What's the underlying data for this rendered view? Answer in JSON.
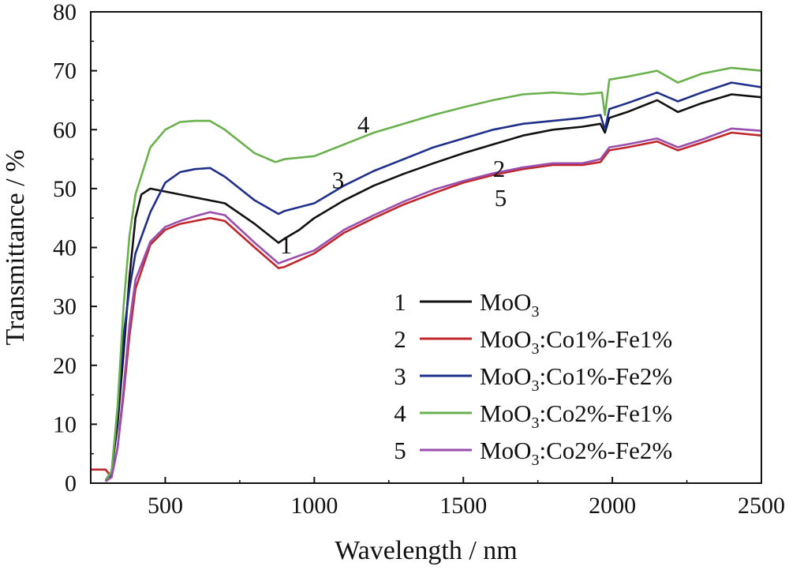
{
  "chart_data": {
    "type": "line",
    "title": "",
    "xlabel": "Wavelength / nm",
    "ylabel": "Transmittance / %",
    "xlim": [
      250,
      2500
    ],
    "ylim": [
      0,
      80
    ],
    "x_ticks": [
      500,
      1000,
      1500,
      2000,
      2500
    ],
    "y_ticks": [
      0,
      10,
      20,
      30,
      40,
      50,
      60,
      70,
      80
    ],
    "grid": false,
    "legend_position": "bottom-right",
    "series": [
      {
        "id": "1",
        "name": "MoO3",
        "legend_base": "MoO",
        "legend_sub": "3",
        "legend_suffix": "",
        "color": "#111111",
        "curve_label": {
          "text": "1",
          "x": 905,
          "y": 40.5
        },
        "points": [
          [
            300,
            0.5
          ],
          [
            320,
            2
          ],
          [
            340,
            10
          ],
          [
            360,
            22
          ],
          [
            380,
            35
          ],
          [
            400,
            45
          ],
          [
            420,
            49
          ],
          [
            450,
            50
          ],
          [
            500,
            49.5
          ],
          [
            600,
            48.5
          ],
          [
            700,
            47.5
          ],
          [
            800,
            44
          ],
          [
            880,
            40.8
          ],
          [
            900,
            41.5
          ],
          [
            950,
            43
          ],
          [
            1000,
            45
          ],
          [
            1100,
            48
          ],
          [
            1200,
            50.5
          ],
          [
            1300,
            52.5
          ],
          [
            1400,
            54.3
          ],
          [
            1500,
            56
          ],
          [
            1600,
            57.5
          ],
          [
            1700,
            59
          ],
          [
            1800,
            60
          ],
          [
            1900,
            60.5
          ],
          [
            1960,
            61
          ],
          [
            1975,
            59.5
          ],
          [
            1990,
            62
          ],
          [
            2050,
            63
          ],
          [
            2150,
            65
          ],
          [
            2220,
            63
          ],
          [
            2300,
            64.5
          ],
          [
            2400,
            66
          ],
          [
            2500,
            65.5
          ]
        ]
      },
      {
        "id": "2",
        "name": "MoO3:Co1%-Fe1%",
        "legend_base": "MoO",
        "legend_sub": "3",
        "legend_suffix": ":Co1%-Fe1%",
        "color": "#c0272d",
        "curve_label": {
          "text": "2",
          "x": 1620,
          "y": 53.5
        },
        "points": [
          [
            250,
            2.3
          ],
          [
            300,
            2.3
          ],
          [
            320,
            1
          ],
          [
            340,
            6
          ],
          [
            360,
            15
          ],
          [
            380,
            25
          ],
          [
            400,
            33
          ],
          [
            450,
            40.5
          ],
          [
            500,
            43
          ],
          [
            550,
            44
          ],
          [
            600,
            44.5
          ],
          [
            650,
            45
          ],
          [
            700,
            44.5
          ],
          [
            800,
            40
          ],
          [
            880,
            36.5
          ],
          [
            900,
            36.7
          ],
          [
            1000,
            39
          ],
          [
            1100,
            42.5
          ],
          [
            1200,
            45
          ],
          [
            1300,
            47.3
          ],
          [
            1400,
            49.2
          ],
          [
            1500,
            51
          ],
          [
            1600,
            52.3
          ],
          [
            1700,
            53.3
          ],
          [
            1800,
            54
          ],
          [
            1900,
            54
          ],
          [
            1960,
            54.5
          ],
          [
            1990,
            56.5
          ],
          [
            2050,
            57
          ],
          [
            2150,
            58
          ],
          [
            2220,
            56.5
          ],
          [
            2300,
            57.8
          ],
          [
            2400,
            59.5
          ],
          [
            2500,
            59
          ]
        ]
      },
      {
        "id": "3",
        "name": "MoO3:Co1%-Fe2%",
        "legend_base": "MoO",
        "legend_sub": "3",
        "legend_suffix": ":Co1%-Fe2%",
        "color": "#1f2f8a",
        "curve_label": {
          "text": "3",
          "x": 1080,
          "y": 51.5
        },
        "points": [
          [
            300,
            0.3
          ],
          [
            320,
            1.5
          ],
          [
            340,
            12
          ],
          [
            360,
            25
          ],
          [
            380,
            33
          ],
          [
            400,
            39
          ],
          [
            450,
            46
          ],
          [
            500,
            51
          ],
          [
            550,
            52.8
          ],
          [
            600,
            53.3
          ],
          [
            650,
            53.5
          ],
          [
            700,
            52
          ],
          [
            800,
            48
          ],
          [
            880,
            45.7
          ],
          [
            900,
            46.2
          ],
          [
            1000,
            47.5
          ],
          [
            1100,
            50.5
          ],
          [
            1200,
            53
          ],
          [
            1300,
            55
          ],
          [
            1400,
            57
          ],
          [
            1500,
            58.5
          ],
          [
            1600,
            60
          ],
          [
            1700,
            61
          ],
          [
            1800,
            61.5
          ],
          [
            1900,
            62
          ],
          [
            1960,
            62.5
          ],
          [
            1975,
            60
          ],
          [
            1990,
            63.5
          ],
          [
            2050,
            64.5
          ],
          [
            2150,
            66.3
          ],
          [
            2220,
            64.8
          ],
          [
            2300,
            66.3
          ],
          [
            2400,
            68
          ],
          [
            2500,
            67.2
          ]
        ]
      },
      {
        "id": "4",
        "name": "MoO3:Co2%-Fe1%",
        "legend_base": "MoO",
        "legend_sub": "3",
        "legend_suffix": ":Co2%-Fe1%",
        "color": "#6ab04c",
        "curve_label": {
          "text": "4",
          "x": 1165,
          "y": 61
        },
        "points": [
          [
            300,
            0.4
          ],
          [
            320,
            2
          ],
          [
            340,
            13
          ],
          [
            360,
            30
          ],
          [
            380,
            42
          ],
          [
            400,
            49
          ],
          [
            450,
            57
          ],
          [
            500,
            60
          ],
          [
            550,
            61.3
          ],
          [
            600,
            61.5
          ],
          [
            650,
            61.5
          ],
          [
            700,
            60
          ],
          [
            800,
            56
          ],
          [
            870,
            54.5
          ],
          [
            900,
            55
          ],
          [
            1000,
            55.5
          ],
          [
            1100,
            57.5
          ],
          [
            1200,
            59.5
          ],
          [
            1300,
            61
          ],
          [
            1400,
            62.5
          ],
          [
            1500,
            63.8
          ],
          [
            1600,
            65
          ],
          [
            1700,
            66
          ],
          [
            1800,
            66.3
          ],
          [
            1900,
            66
          ],
          [
            1965,
            66.3
          ],
          [
            1975,
            62.5
          ],
          [
            1990,
            68.5
          ],
          [
            2050,
            69
          ],
          [
            2150,
            70
          ],
          [
            2220,
            68
          ],
          [
            2300,
            69.5
          ],
          [
            2400,
            70.5
          ],
          [
            2500,
            70
          ]
        ]
      },
      {
        "id": "5",
        "name": "MoO3:Co2%-Fe2%",
        "legend_base": "MoO",
        "legend_sub": "3",
        "legend_suffix": ":Co2%-Fe2%",
        "color": "#9a4fae",
        "curve_label": {
          "text": "5",
          "x": 1625,
          "y": 48.5
        },
        "points": [
          [
            300,
            0.3
          ],
          [
            320,
            1
          ],
          [
            340,
            6
          ],
          [
            360,
            16
          ],
          [
            380,
            27
          ],
          [
            400,
            34.5
          ],
          [
            450,
            41
          ],
          [
            500,
            43.5
          ],
          [
            550,
            44.5
          ],
          [
            600,
            45.3
          ],
          [
            650,
            46
          ],
          [
            700,
            45.5
          ],
          [
            800,
            40.8
          ],
          [
            880,
            37.3
          ],
          [
            900,
            37.7
          ],
          [
            1000,
            39.5
          ],
          [
            1100,
            43
          ],
          [
            1200,
            45.5
          ],
          [
            1300,
            47.8
          ],
          [
            1400,
            49.8
          ],
          [
            1500,
            51.3
          ],
          [
            1600,
            52.6
          ],
          [
            1700,
            53.6
          ],
          [
            1800,
            54.3
          ],
          [
            1900,
            54.3
          ],
          [
            1960,
            55
          ],
          [
            1990,
            57
          ],
          [
            2050,
            57.5
          ],
          [
            2150,
            58.5
          ],
          [
            2220,
            57
          ],
          [
            2300,
            58.3
          ],
          [
            2400,
            60.2
          ],
          [
            2500,
            59.8
          ]
        ]
      }
    ]
  }
}
